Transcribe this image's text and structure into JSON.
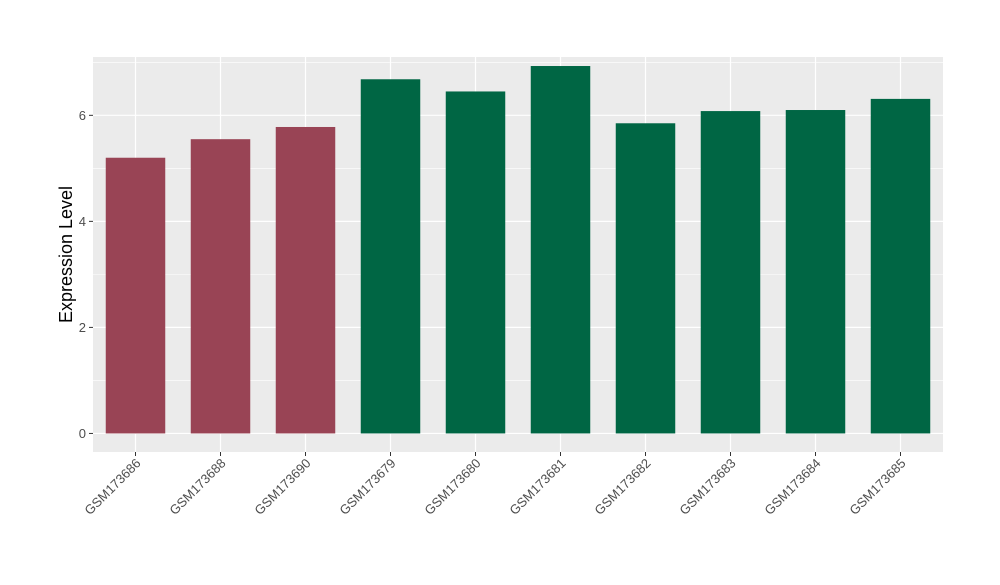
{
  "chart_data": {
    "type": "bar",
    "title": "",
    "xlabel": "",
    "ylabel": "Expression Level",
    "categories": [
      "GSM173686",
      "GSM173688",
      "GSM173690",
      "GSM173679",
      "GSM173680",
      "GSM173681",
      "GSM173682",
      "GSM173683",
      "GSM173684",
      "GSM173685"
    ],
    "values": [
      5.2,
      5.55,
      5.78,
      6.68,
      6.45,
      6.93,
      5.85,
      6.08,
      6.1,
      6.31
    ],
    "bar_colors": [
      "#994455",
      "#994455",
      "#994455",
      "#006644",
      "#006644",
      "#006644",
      "#006644",
      "#006644",
      "#006644",
      "#006644"
    ],
    "ylim": [
      -0.35,
      7.1
    ],
    "yticks": [
      0,
      2,
      4,
      6
    ],
    "ytick_labels": [
      "0",
      "2",
      "4",
      "6"
    ],
    "grid": true,
    "legend": "none",
    "panel_background": "#ebebeb",
    "gridline_color": "#ffffff"
  }
}
